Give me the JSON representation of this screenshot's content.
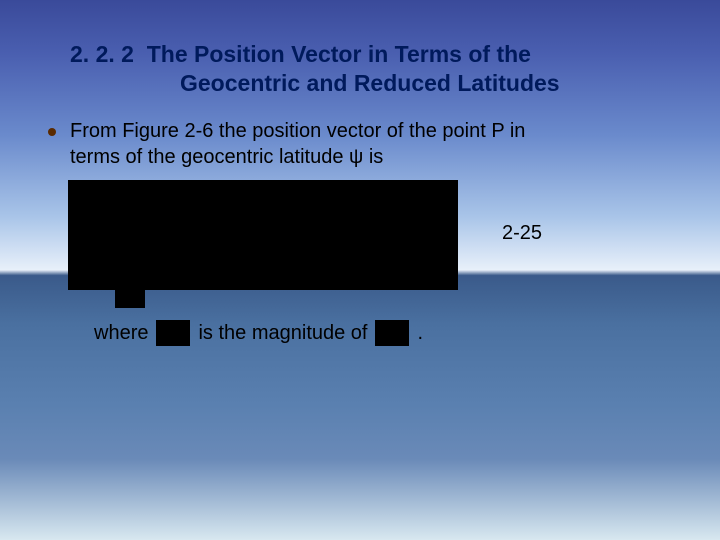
{
  "heading": {
    "number": "2. 2. 2",
    "title_line1": "The Position Vector in Terms of the",
    "title_line2": "Geocentric and Reduced Latitudes"
  },
  "body": {
    "para1_a": "From Figure 2-6 the position vector of the point P in",
    "para1_b": "terms of the geocentric latitude ψ is"
  },
  "equation": {
    "label": "2-25"
  },
  "where": {
    "text_a": "where",
    "text_b": "is the magnitude of",
    "text_c": "."
  },
  "colors": {
    "heading_color": "#001a5c",
    "body_color": "#000000",
    "bullet_color": "#5a2a00",
    "redact_color": "#000000"
  }
}
